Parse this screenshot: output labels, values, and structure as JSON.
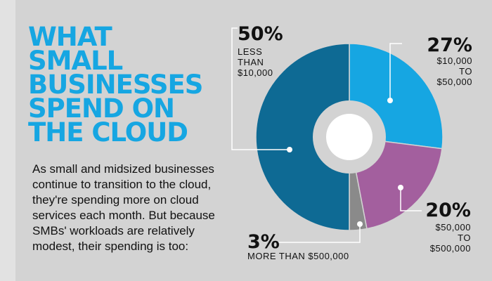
{
  "title_lines": [
    "WHAT",
    "SMALL",
    "BUSINESSES",
    "SPEND ON",
    "THE CLOUD"
  ],
  "body_lines": [
    "As small and midsized businesses",
    "continue to transition to the cloud,",
    "they're spending more on cloud",
    "services each month. But because",
    "SMBs' workloads are relatively",
    "modest, their spending is too:"
  ],
  "colors": {
    "background": "#d3d3d3",
    "title": "#16a6e2",
    "slice_50": "#0e6a94",
    "slice_27": "#16a6e2",
    "slice_20": "#a35f9e",
    "slice_3": "#8a8a8a",
    "center_ring": "#d3d3d3",
    "center_hole": "#ffffff"
  },
  "chart_data": {
    "type": "pie",
    "title": "WHAT SMALL BUSINESSES SPEND ON THE CLOUD",
    "slices": [
      {
        "pct_label": "27%",
        "label_lines": [
          "$10,000",
          "TO",
          "$50,000"
        ],
        "value": 27
      },
      {
        "pct_label": "20%",
        "label_lines": [
          "$50,000",
          "TO",
          "$500,000"
        ],
        "value": 20
      },
      {
        "pct_label": "3%",
        "label_lines": [
          "MORE THAN $500,000"
        ],
        "value": 3
      },
      {
        "pct_label": "50%",
        "label_lines": [
          "LESS",
          "THAN",
          "$10,000"
        ],
        "value": 50
      }
    ]
  }
}
